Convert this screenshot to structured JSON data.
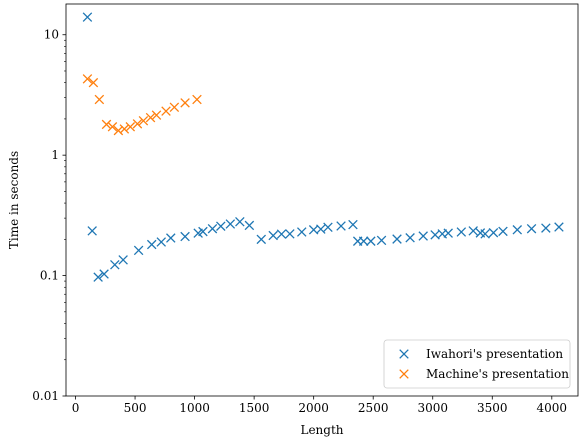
{
  "chart_data": {
    "type": "scatter",
    "xlabel": "Length",
    "ylabel": "Time in seconds",
    "xlim": [
      -80,
      4220
    ],
    "ylim": [
      0.01,
      18
    ],
    "yscale": "log",
    "grid": false,
    "legend_position": "bottom-right",
    "x_ticks": [
      0,
      500,
      1000,
      1500,
      2000,
      2500,
      3000,
      3500,
      4000
    ],
    "x_tick_labels": [
      "0",
      "500",
      "1000",
      "1500",
      "2000",
      "2500",
      "3000",
      "3500",
      "4000"
    ],
    "y_ticks": [
      0.01,
      0.1,
      1,
      10
    ],
    "y_tick_labels": [
      "0.01",
      "0.1",
      "1",
      "10"
    ],
    "series": [
      {
        "name": "Iwahori's presentation",
        "color": "#1f77b4",
        "marker": "x",
        "points": [
          [
            100,
            14.0
          ],
          [
            140,
            0.235
          ],
          [
            190,
            0.097
          ],
          [
            240,
            0.103
          ],
          [
            330,
            0.123
          ],
          [
            400,
            0.135
          ],
          [
            530,
            0.162
          ],
          [
            640,
            0.181
          ],
          [
            720,
            0.19
          ],
          [
            800,
            0.205
          ],
          [
            920,
            0.211
          ],
          [
            1030,
            0.225
          ],
          [
            1070,
            0.232
          ],
          [
            1150,
            0.245
          ],
          [
            1220,
            0.257
          ],
          [
            1300,
            0.268
          ],
          [
            1380,
            0.28
          ],
          [
            1460,
            0.261
          ],
          [
            1560,
            0.2
          ],
          [
            1660,
            0.215
          ],
          [
            1730,
            0.221
          ],
          [
            1800,
            0.222
          ],
          [
            1900,
            0.23
          ],
          [
            2000,
            0.24
          ],
          [
            2060,
            0.243
          ],
          [
            2120,
            0.252
          ],
          [
            2230,
            0.258
          ],
          [
            2330,
            0.265
          ],
          [
            2370,
            0.193
          ],
          [
            2420,
            0.193
          ],
          [
            2480,
            0.193
          ],
          [
            2570,
            0.196
          ],
          [
            2700,
            0.201
          ],
          [
            2810,
            0.206
          ],
          [
            2920,
            0.213
          ],
          [
            3020,
            0.218
          ],
          [
            3080,
            0.222
          ],
          [
            3130,
            0.225
          ],
          [
            3240,
            0.23
          ],
          [
            3340,
            0.235
          ],
          [
            3400,
            0.226
          ],
          [
            3440,
            0.222
          ],
          [
            3510,
            0.227
          ],
          [
            3590,
            0.233
          ],
          [
            3710,
            0.24
          ],
          [
            3830,
            0.245
          ],
          [
            3950,
            0.248
          ],
          [
            4060,
            0.253
          ]
        ]
      },
      {
        "name": "Machine's presentation",
        "color": "#ff7f0e",
        "marker": "x",
        "points": [
          [
            100,
            4.3
          ],
          [
            150,
            4.0
          ],
          [
            200,
            2.9
          ],
          [
            260,
            1.8
          ],
          [
            310,
            1.72
          ],
          [
            360,
            1.6
          ],
          [
            410,
            1.65
          ],
          [
            460,
            1.72
          ],
          [
            520,
            1.82
          ],
          [
            570,
            1.93
          ],
          [
            630,
            2.05
          ],
          [
            680,
            2.15
          ],
          [
            760,
            2.32
          ],
          [
            830,
            2.5
          ],
          [
            920,
            2.72
          ],
          [
            1020,
            2.9
          ]
        ]
      }
    ]
  }
}
